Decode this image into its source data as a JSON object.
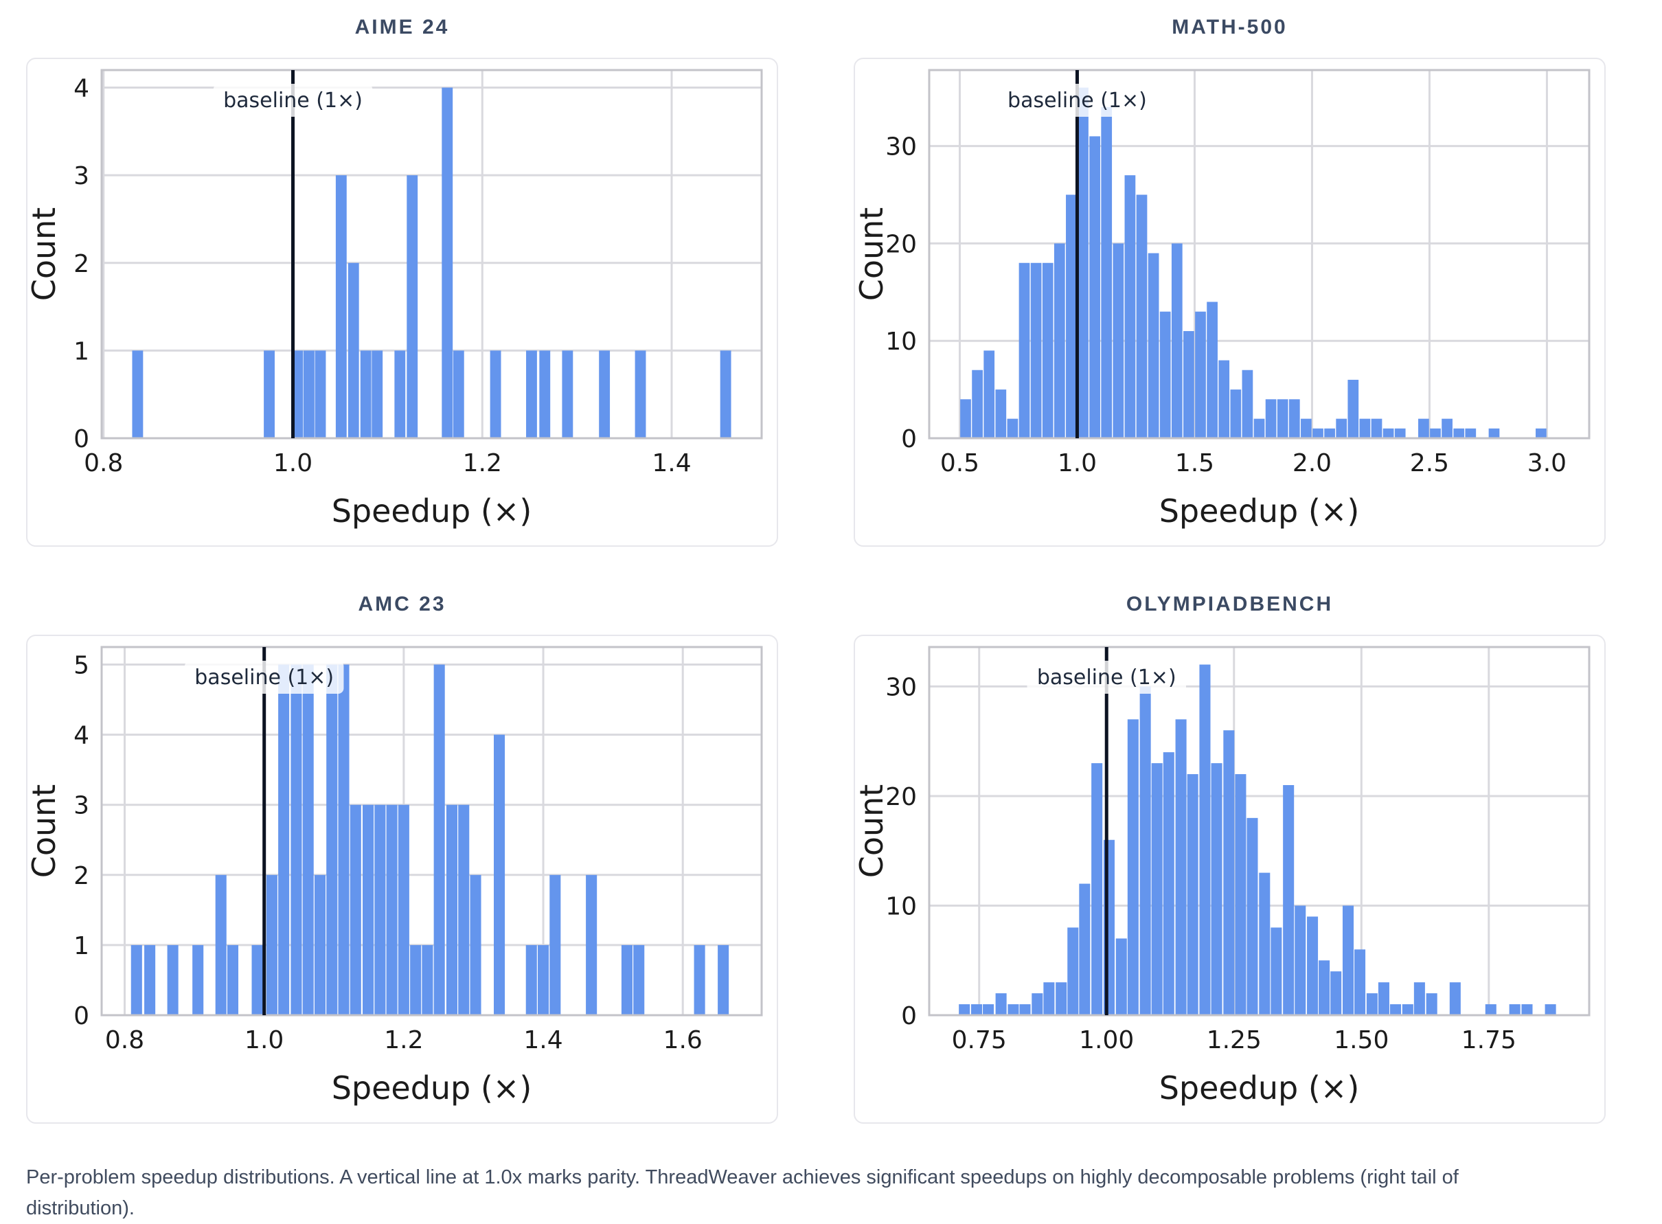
{
  "page": {
    "background": "#ffffff"
  },
  "caption": "Per-problem speedup distributions. A vertical line at 1.0x marks parity. ThreadWeaver achieves significant speedups on highly decomposable problems (right tail of distribution).",
  "annotation_label": "baseline (1×)",
  "style": {
    "bar_color": "#6495ED",
    "baseline_color": "#0c1322",
    "grid_color": "#d9d9de",
    "frame_color": "#c3c3c9",
    "title_color": "#3b4a63",
    "tick_color": "#1b1b1b",
    "caption_color": "#404b5e",
    "annotation_text_color": "#1e293b",
    "annotation_bg": "rgba(255,255,255,0.82)",
    "card_border": "#e7e7ec"
  },
  "chart_data": [
    {
      "type": "bar",
      "subtype": "histogram",
      "title": "AIME 24",
      "xlabel": "Speedup (×)",
      "ylabel": "Count",
      "xlim": [
        0.798,
        1.495
      ],
      "ylim": [
        0,
        4.2
      ],
      "xticks": {
        "values": [
          0.8,
          1.0,
          1.2,
          1.4
        ],
        "labels": [
          "0.8",
          "1.0",
          "1.2",
          "1.4"
        ]
      },
      "yticks": [
        0,
        1,
        2,
        3,
        4
      ],
      "baseline_x": 1.0,
      "bin_width": 0.0125,
      "grid": true,
      "bars": [
        [
          0.836,
          1
        ],
        [
          0.975,
          1
        ],
        [
          1.005,
          1
        ],
        [
          1.017,
          1
        ],
        [
          1.029,
          1
        ],
        [
          1.051,
          3
        ],
        [
          1.064,
          2
        ],
        [
          1.077,
          1
        ],
        [
          1.089,
          1
        ],
        [
          1.113,
          1
        ],
        [
          1.126,
          3
        ],
        [
          1.163,
          4
        ],
        [
          1.175,
          1
        ],
        [
          1.214,
          1
        ],
        [
          1.252,
          1
        ],
        [
          1.266,
          1
        ],
        [
          1.29,
          1
        ],
        [
          1.329,
          1
        ],
        [
          1.367,
          1
        ],
        [
          1.457,
          1
        ]
      ]
    },
    {
      "type": "bar",
      "subtype": "histogram",
      "title": "MATH-500",
      "xlabel": "Speedup (×)",
      "ylabel": "Count",
      "xlim": [
        0.37,
        3.18
      ],
      "ylim": [
        0,
        37.8
      ],
      "xticks": {
        "values": [
          0.5,
          1.0,
          1.5,
          2.0,
          2.5,
          3.0
        ],
        "labels": [
          "0.5",
          "1.0",
          "1.5",
          "2.0",
          "2.5",
          "3.0"
        ]
      },
      "yticks": [
        0,
        10,
        20,
        30
      ],
      "baseline_x": 1.0,
      "bin_width": 0.05,
      "grid": true,
      "bars": [
        [
          0.525,
          4
        ],
        [
          0.575,
          7
        ],
        [
          0.625,
          9
        ],
        [
          0.675,
          5
        ],
        [
          0.725,
          2
        ],
        [
          0.775,
          18
        ],
        [
          0.825,
          18
        ],
        [
          0.875,
          18
        ],
        [
          0.925,
          20
        ],
        [
          0.975,
          25
        ],
        [
          1.025,
          36
        ],
        [
          1.075,
          31
        ],
        [
          1.125,
          34
        ],
        [
          1.175,
          20
        ],
        [
          1.225,
          27
        ],
        [
          1.275,
          25
        ],
        [
          1.325,
          19
        ],
        [
          1.375,
          13
        ],
        [
          1.425,
          20
        ],
        [
          1.475,
          11
        ],
        [
          1.525,
          13
        ],
        [
          1.575,
          14
        ],
        [
          1.625,
          8
        ],
        [
          1.675,
          5
        ],
        [
          1.725,
          7
        ],
        [
          1.775,
          2
        ],
        [
          1.825,
          4
        ],
        [
          1.875,
          4
        ],
        [
          1.925,
          4
        ],
        [
          1.975,
          2
        ],
        [
          2.025,
          1
        ],
        [
          2.075,
          1
        ],
        [
          2.125,
          2
        ],
        [
          2.175,
          6
        ],
        [
          2.225,
          2
        ],
        [
          2.275,
          2
        ],
        [
          2.325,
          1
        ],
        [
          2.375,
          1
        ],
        [
          2.475,
          2
        ],
        [
          2.525,
          1
        ],
        [
          2.575,
          2
        ],
        [
          2.625,
          1
        ],
        [
          2.675,
          1
        ],
        [
          2.775,
          1
        ],
        [
          2.975,
          1
        ]
      ]
    },
    {
      "type": "bar",
      "subtype": "histogram",
      "title": "AMC 23",
      "xlabel": "Speedup (×)",
      "ylabel": "Count",
      "xlim": [
        0.767,
        1.713
      ],
      "ylim": [
        0,
        5.25
      ],
      "xticks": {
        "values": [
          0.8,
          1.0,
          1.2,
          1.4,
          1.6
        ],
        "labels": [
          "0.8",
          "1.0",
          "1.2",
          "1.4",
          "1.6"
        ]
      },
      "yticks": [
        0,
        1,
        2,
        3,
        4,
        5
      ],
      "baseline_x": 1.0,
      "bin_width": 0.0172,
      "grid": true,
      "bars": [
        [
          0.817,
          1
        ],
        [
          0.836,
          1
        ],
        [
          0.869,
          1
        ],
        [
          0.905,
          1
        ],
        [
          0.938,
          2
        ],
        [
          0.955,
          1
        ],
        [
          0.99,
          1
        ],
        [
          1.011,
          2
        ],
        [
          1.028,
          5
        ],
        [
          1.046,
          5
        ],
        [
          1.063,
          5
        ],
        [
          1.08,
          2
        ],
        [
          1.097,
          5
        ],
        [
          1.114,
          5
        ],
        [
          1.131,
          3
        ],
        [
          1.149,
          3
        ],
        [
          1.166,
          3
        ],
        [
          1.183,
          3
        ],
        [
          1.2,
          3
        ],
        [
          1.217,
          1
        ],
        [
          1.234,
          1
        ],
        [
          1.251,
          5
        ],
        [
          1.269,
          3
        ],
        [
          1.286,
          3
        ],
        [
          1.303,
          2
        ],
        [
          1.337,
          4
        ],
        [
          1.383,
          1
        ],
        [
          1.4,
          1
        ],
        [
          1.417,
          2
        ],
        [
          1.469,
          2
        ],
        [
          1.52,
          1
        ],
        [
          1.537,
          1
        ],
        [
          1.624,
          1
        ],
        [
          1.658,
          1
        ]
      ]
    },
    {
      "type": "bar",
      "subtype": "histogram",
      "title": "OLYMPIADBENCH",
      "xlabel": "Speedup (×)",
      "ylabel": "Count",
      "xlim": [
        0.652,
        1.947
      ],
      "ylim": [
        0,
        33.6
      ],
      "xticks": {
        "values": [
          0.75,
          1.0,
          1.25,
          1.5,
          1.75
        ],
        "labels": [
          "0.75",
          "1.00",
          "1.25",
          "1.50",
          "1.75"
        ]
      },
      "yticks": [
        0,
        10,
        20,
        30
      ],
      "baseline_x": 1.0,
      "bin_width": 0.0235,
      "grid": true,
      "bars": [
        [
          0.721,
          1
        ],
        [
          0.745,
          1
        ],
        [
          0.768,
          1
        ],
        [
          0.793,
          2
        ],
        [
          0.817,
          1
        ],
        [
          0.84,
          1
        ],
        [
          0.864,
          2
        ],
        [
          0.887,
          3
        ],
        [
          0.911,
          3
        ],
        [
          0.934,
          8
        ],
        [
          0.957,
          12
        ],
        [
          0.981,
          23
        ],
        [
          1.005,
          16
        ],
        [
          1.029,
          7
        ],
        [
          1.052,
          27
        ],
        [
          1.076,
          30
        ],
        [
          1.099,
          23
        ],
        [
          1.122,
          24
        ],
        [
          1.146,
          27
        ],
        [
          1.169,
          22
        ],
        [
          1.193,
          32
        ],
        [
          1.216,
          23
        ],
        [
          1.24,
          26
        ],
        [
          1.263,
          22
        ],
        [
          1.286,
          18
        ],
        [
          1.31,
          13
        ],
        [
          1.333,
          8
        ],
        [
          1.357,
          21
        ],
        [
          1.38,
          10
        ],
        [
          1.404,
          9
        ],
        [
          1.427,
          5
        ],
        [
          1.45,
          4
        ],
        [
          1.474,
          10
        ],
        [
          1.497,
          6
        ],
        [
          1.521,
          2
        ],
        [
          1.544,
          3
        ],
        [
          1.567,
          1
        ],
        [
          1.591,
          1
        ],
        [
          1.614,
          3
        ],
        [
          1.638,
          2
        ],
        [
          1.684,
          3
        ],
        [
          1.754,
          1
        ],
        [
          1.801,
          1
        ],
        [
          1.825,
          1
        ],
        [
          1.871,
          1
        ]
      ]
    }
  ]
}
